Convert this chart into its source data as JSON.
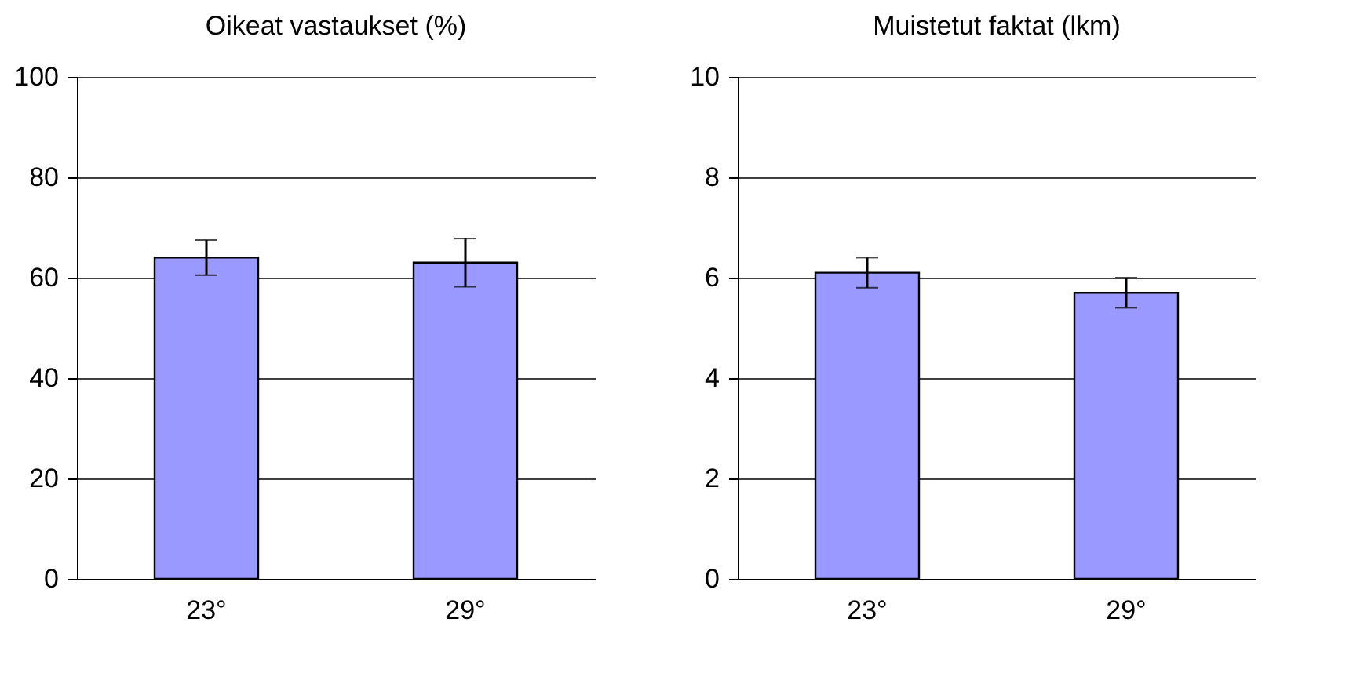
{
  "chart_data": [
    {
      "type": "bar",
      "title": "Oikeat vastaukset (%)",
      "categories": [
        "23°",
        "29°"
      ],
      "values": [
        64,
        63
      ],
      "errors": [
        3.5,
        4.8
      ],
      "color": "#9999ff",
      "ylim": [
        0,
        100
      ],
      "yticks": [
        0,
        20,
        40,
        60,
        80,
        100
      ],
      "grid": "y"
    },
    {
      "type": "bar",
      "title": "Muistetut faktat (lkm)",
      "categories": [
        "23°",
        "29°"
      ],
      "values": [
        6.1,
        5.7
      ],
      "errors": [
        0.3,
        0.3
      ],
      "color": "#9999ff",
      "ylim": [
        0,
        10
      ],
      "yticks": [
        0,
        2,
        4,
        6,
        8,
        10
      ],
      "grid": "y"
    }
  ]
}
